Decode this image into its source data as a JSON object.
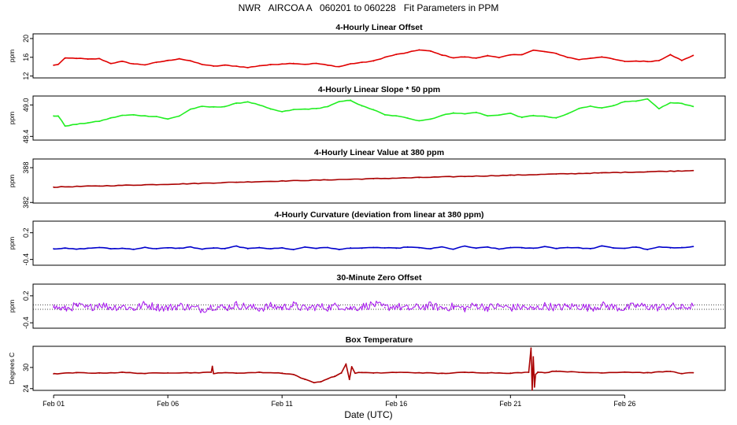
{
  "figure": {
    "title": "NWR   AIRCOA A   060201 to 060228   Fit Parameters in PPM",
    "xlabel": "Date (UTC)",
    "x_ticks": [
      "Feb 01",
      "Feb 06",
      "Feb 11",
      "Feb 16",
      "Feb 21",
      "Feb 26"
    ],
    "x_range_days": [
      -0.9,
      29.4
    ]
  },
  "chart_data": [
    {
      "type": "line",
      "title": "4-Hourly Linear Offset",
      "ylabel": "ppm",
      "ylim": [
        11.6,
        21.0
      ],
      "yticks": [
        12,
        16,
        20
      ],
      "ytick_labels": [
        "12",
        "16",
        "20"
      ],
      "color": "#e00000",
      "x": [
        0.0,
        0.2,
        0.5,
        1.0,
        1.5,
        2.0,
        2.5,
        3.0,
        3.5,
        4.0,
        4.5,
        5.0,
        5.5,
        6.0,
        6.5,
        7.0,
        7.5,
        8.0,
        8.5,
        9.0,
        9.5,
        10.0,
        10.5,
        11.0,
        11.5,
        12.0,
        12.5,
        13.0,
        13.5,
        14.0,
        14.5,
        15.0,
        15.5,
        16.0,
        16.5,
        17.0,
        17.5,
        18.0,
        18.5,
        19.0,
        19.5,
        20.0,
        20.5,
        21.0,
        21.5,
        22.0,
        22.5,
        23.0,
        23.5,
        24.0,
        24.5,
        25.0,
        25.5,
        26.0,
        26.5,
        27.0,
        27.5,
        28.0
      ],
      "y": [
        14.3,
        14.5,
        15.8,
        15.8,
        15.6,
        15.7,
        14.7,
        15.1,
        14.6,
        14.4,
        14.9,
        15.3,
        15.7,
        15.2,
        14.5,
        14.1,
        14.3,
        14.1,
        13.8,
        14.2,
        14.4,
        14.6,
        14.7,
        14.5,
        14.7,
        14.3,
        14.0,
        14.6,
        14.9,
        15.2,
        16.0,
        16.6,
        17.0,
        17.6,
        17.3,
        16.5,
        15.9,
        16.1,
        15.8,
        16.4,
        15.9,
        16.5,
        16.6,
        17.5,
        17.2,
        16.8,
        16.0,
        15.5,
        15.8,
        16.1,
        15.6,
        15.1,
        15.2,
        15.1,
        15.3,
        16.6,
        15.3,
        16.4
      ]
    },
    {
      "type": "line",
      "title": "4-Hourly Linear Slope * 50 ppm",
      "ylabel": "ppm",
      "ylim": [
        48.33,
        49.17
      ],
      "yticks": [
        48.4,
        49.0
      ],
      "ytick_labels": [
        "48.4",
        "49.0"
      ],
      "color": "#22ee22",
      "x": [
        0.0,
        0.2,
        0.5,
        1.0,
        1.5,
        2.0,
        2.5,
        3.0,
        3.5,
        4.0,
        4.5,
        5.0,
        5.5,
        6.0,
        6.5,
        7.0,
        7.5,
        8.0,
        8.5,
        9.0,
        9.5,
        10.0,
        10.5,
        11.0,
        11.5,
        12.0,
        12.5,
        13.0,
        13.5,
        14.0,
        14.5,
        15.0,
        15.5,
        16.0,
        16.5,
        17.0,
        17.5,
        18.0,
        18.5,
        19.0,
        19.5,
        20.0,
        20.5,
        21.0,
        21.5,
        22.0,
        22.5,
        23.0,
        23.5,
        24.0,
        24.5,
        25.0,
        25.5,
        26.0,
        26.5,
        27.0,
        27.5,
        28.0
      ],
      "y": [
        48.79,
        48.79,
        48.6,
        48.63,
        48.66,
        48.69,
        48.75,
        48.8,
        48.81,
        48.79,
        48.78,
        48.73,
        48.79,
        48.92,
        48.97,
        48.96,
        48.97,
        49.03,
        49.06,
        49.0,
        48.92,
        48.87,
        48.91,
        48.92,
        48.93,
        48.97,
        49.06,
        49.09,
        48.98,
        48.91,
        48.81,
        48.79,
        48.75,
        48.7,
        48.73,
        48.8,
        48.85,
        48.83,
        48.86,
        48.79,
        48.81,
        48.84,
        48.76,
        48.8,
        48.78,
        48.75,
        48.83,
        48.93,
        48.98,
        48.94,
        48.99,
        49.06,
        49.07,
        49.11,
        48.93,
        49.04,
        49.03,
        48.97
      ]
    },
    {
      "type": "line",
      "title": "4-Hourly Linear Value at 380 ppm",
      "ylabel": "ppm",
      "ylim": [
        381.9,
        389.5
      ],
      "yticks": [
        382,
        388
      ],
      "ytick_labels": [
        "382",
        "388"
      ],
      "color": "#aa0000",
      "x": [
        0.0,
        2.0,
        4.0,
        6.0,
        8.0,
        10.0,
        12.0,
        14.0,
        16.0,
        18.0,
        20.0,
        22.0,
        24.0,
        26.0,
        28.0
      ],
      "y": [
        384.65,
        384.85,
        385.05,
        385.25,
        385.5,
        385.7,
        385.9,
        386.1,
        386.3,
        386.5,
        386.7,
        386.9,
        387.1,
        387.3,
        387.5
      ]
    },
    {
      "type": "line",
      "title": "4-Hourly Curvature (deviation from linear at 380 ppm)",
      "ylabel": "ppm",
      "ylim": [
        -0.53,
        0.46
      ],
      "yticks": [
        -0.4,
        0.2
      ],
      "ytick_labels": [
        "-0.4",
        "0.2"
      ],
      "color": "#0000cc",
      "x": [
        0.0,
        0.5,
        1.0,
        1.5,
        2.0,
        2.5,
        3.0,
        3.5,
        4.0,
        4.5,
        5.0,
        5.5,
        6.0,
        6.5,
        7.0,
        7.5,
        8.0,
        8.5,
        9.0,
        9.5,
        10.0,
        10.5,
        11.0,
        11.5,
        12.0,
        12.5,
        13.0,
        13.5,
        14.0,
        14.5,
        15.0,
        15.5,
        16.0,
        16.5,
        17.0,
        17.5,
        18.0,
        18.5,
        19.0,
        19.5,
        20.0,
        20.5,
        21.0,
        21.5,
        22.0,
        22.5,
        23.0,
        23.5,
        24.0,
        24.5,
        25.0,
        25.5,
        26.0,
        26.5,
        27.0,
        27.5,
        28.0
      ],
      "y": [
        -0.16,
        -0.15,
        -0.17,
        -0.15,
        -0.13,
        -0.16,
        -0.15,
        -0.17,
        -0.13,
        -0.16,
        -0.14,
        -0.15,
        -0.12,
        -0.17,
        -0.14,
        -0.16,
        -0.1,
        -0.16,
        -0.13,
        -0.16,
        -0.14,
        -0.18,
        -0.12,
        -0.15,
        -0.13,
        -0.18,
        -0.14,
        -0.15,
        -0.13,
        -0.14,
        -0.15,
        -0.12,
        -0.14,
        -0.16,
        -0.12,
        -0.17,
        -0.1,
        -0.15,
        -0.12,
        -0.17,
        -0.13,
        -0.14,
        -0.15,
        -0.11,
        -0.15,
        -0.13,
        -0.14,
        -0.16,
        -0.1,
        -0.14,
        -0.15,
        -0.12,
        -0.18,
        -0.12,
        -0.14,
        -0.13,
        -0.11
      ]
    },
    {
      "type": "line",
      "title": "30-Minute Zero Offset",
      "ylabel": "ppm",
      "ylim": [
        -0.52,
        0.46
      ],
      "yticks": [
        -0.4,
        0.2
      ],
      "ytick_labels": [
        "-0.4",
        "0.2"
      ],
      "reference_lines": [
        0.0,
        -0.1
      ],
      "color": "#aa22ee",
      "x": [
        0.0,
        0.5,
        1.0,
        1.5,
        2.0,
        2.5,
        3.0,
        3.5,
        4.0,
        4.5,
        5.0,
        5.5,
        6.0,
        6.5,
        7.0,
        7.5,
        8.0,
        8.5,
        9.0,
        9.5,
        10.0,
        10.5,
        11.0,
        11.5,
        12.0,
        12.5,
        13.0,
        13.5,
        14.0,
        14.5,
        15.0,
        15.5,
        16.0,
        16.5,
        17.0,
        17.5,
        18.0,
        18.5,
        19.0,
        19.5,
        20.0,
        20.5,
        21.0,
        21.5,
        22.0,
        22.5,
        23.0,
        23.5,
        24.0,
        24.5,
        25.0,
        25.5,
        26.0,
        26.5,
        27.0,
        27.5,
        28.0
      ],
      "y": [
        -0.05,
        -0.1,
        -0.02,
        -0.08,
        0.02,
        -0.06,
        -0.03,
        -0.09,
        0.01,
        -0.05,
        -0.07,
        -0.02,
        -0.06,
        -0.1,
        -0.03,
        -0.07,
        0.0,
        -0.05,
        -0.08,
        -0.03,
        -0.06,
        -0.01,
        -0.09,
        -0.04,
        -0.06,
        -0.02,
        -0.08,
        -0.04,
        0.01,
        -0.06,
        -0.03,
        -0.09,
        -0.05,
        -0.02,
        -0.07,
        -0.04,
        -0.08,
        -0.01,
        -0.06,
        -0.03,
        -0.07,
        -0.05,
        -0.1,
        -0.02,
        -0.06,
        -0.04,
        -0.03,
        -0.07,
        -0.01,
        -0.05,
        -0.08,
        -0.02,
        -0.04,
        -0.06,
        -0.03,
        -0.07,
        -0.02
      ],
      "noise_amplitude": 0.09
    },
    {
      "type": "line",
      "title": "Box Temperature",
      "ylabel": "Degrees C",
      "ylim": [
        23.5,
        36.0
      ],
      "yticks": [
        24,
        30
      ],
      "ytick_labels": [
        "24",
        "30"
      ],
      "color": "#aa0000",
      "x": [
        0.0,
        1.0,
        2.0,
        3.0,
        4.0,
        5.0,
        6.0,
        6.9,
        6.95,
        7.0,
        7.2,
        8.0,
        9.0,
        10.0,
        10.5,
        11.0,
        11.4,
        11.7,
        12.0,
        12.3,
        12.6,
        12.8,
        12.95,
        13.05,
        13.2,
        13.5,
        14.0,
        15.0,
        16.0,
        17.0,
        18.0,
        19.0,
        20.0,
        20.8,
        20.9,
        20.95,
        21.0,
        21.05,
        21.1,
        21.2,
        21.5,
        22.0,
        23.0,
        24.0,
        25.0,
        26.0,
        27.0,
        27.5,
        28.0
      ],
      "y": [
        28.2,
        28.5,
        28.4,
        28.6,
        28.3,
        28.5,
        28.5,
        28.6,
        30.3,
        28.3,
        28.5,
        28.4,
        28.6,
        28.4,
        28.0,
        26.6,
        25.7,
        26.0,
        26.8,
        27.5,
        28.4,
        31.0,
        26.6,
        30.2,
        28.4,
        28.6,
        28.4,
        28.6,
        28.5,
        28.3,
        28.6,
        28.5,
        28.4,
        28.6,
        35.5,
        23.6,
        33.0,
        24.5,
        28.0,
        28.7,
        28.5,
        29.0,
        28.6,
        28.5,
        28.7,
        28.5,
        28.9,
        28.3,
        28.5
      ]
    }
  ]
}
